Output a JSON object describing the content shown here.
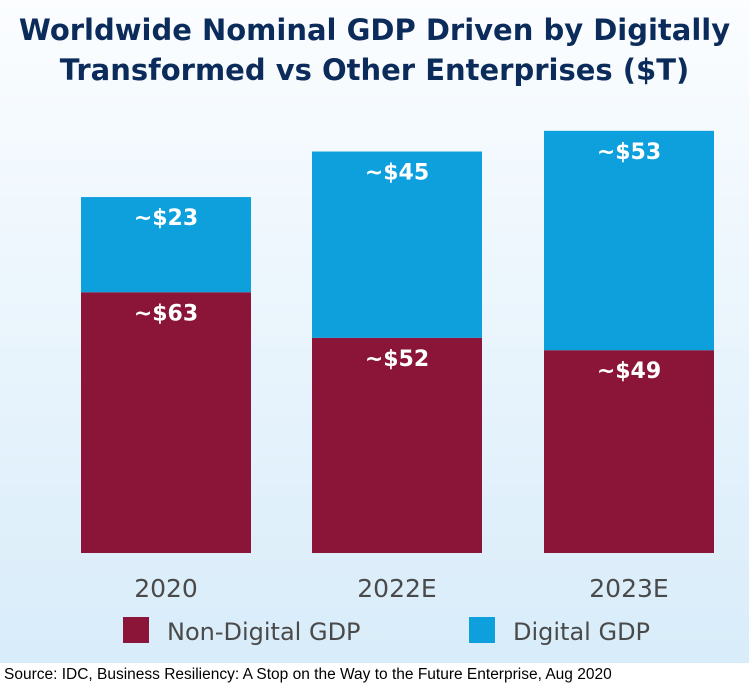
{
  "chart_data": {
    "type": "bar",
    "stacked": true,
    "title": "Worldwide Nominal GDP Driven by Digitally Transformed vs Other Enterprises ($T)",
    "categories": [
      "2020",
      "2022E",
      "2023E"
    ],
    "series": [
      {
        "name": "Non-Digital GDP",
        "values": [
          63,
          52,
          49
        ],
        "labels": [
          "~$63",
          "~$52",
          "~$49"
        ],
        "color": "#8a1538"
      },
      {
        "name": "Digital GDP",
        "values": [
          23,
          45,
          53
        ],
        "labels": [
          "~$23",
          "~$45",
          "~$53"
        ],
        "color": "#0ea0dc"
      }
    ],
    "ylim": [
      0,
      108
    ],
    "grid": false,
    "legend": "bottom"
  },
  "source": "Source: IDC, Business Resiliency: A Stop on the Way to the Future Enterprise, Aug 2020"
}
